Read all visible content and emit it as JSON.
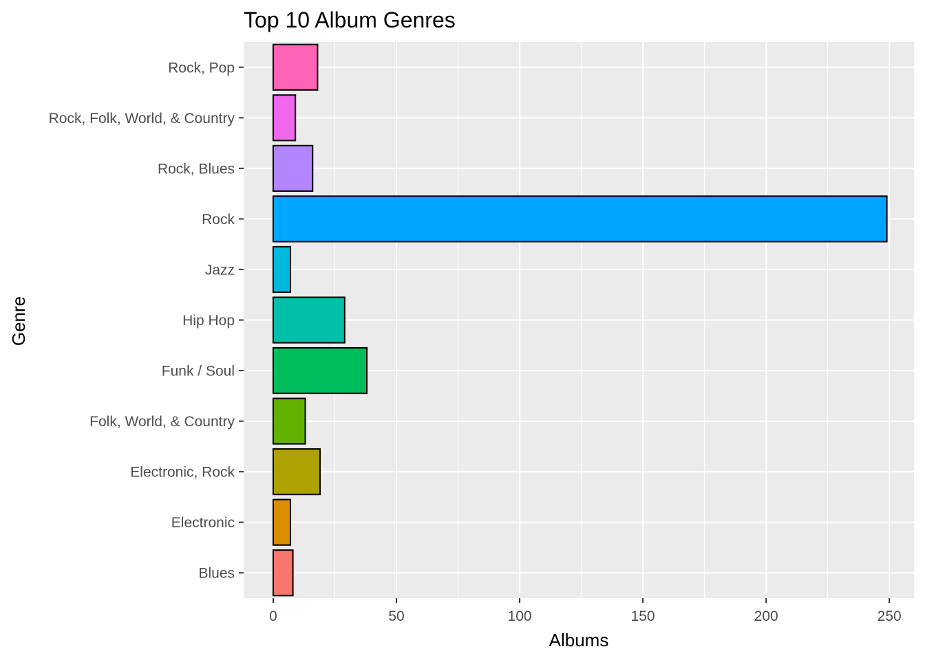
{
  "chart_data": {
    "type": "bar",
    "orientation": "horizontal",
    "title": "Top 10 Album Genres",
    "xlabel": "Albums",
    "ylabel": "Genre",
    "categories": [
      "Blues",
      "Electronic",
      "Electronic, Rock",
      "Folk, World, & Country",
      "Funk / Soul",
      "Hip Hop",
      "Jazz",
      "Rock",
      "Rock, Blues",
      "Rock, Folk, World, & Country",
      "Rock, Pop"
    ],
    "values": [
      8,
      7,
      19,
      13,
      38,
      29,
      7,
      249,
      16,
      9,
      18
    ],
    "colors": [
      "#F8766D",
      "#DB8E00",
      "#AEA200",
      "#64B200",
      "#00BD5C",
      "#00C1A7",
      "#00BADE",
      "#00A6FF",
      "#B385FF",
      "#EF67EB",
      "#FF63B6"
    ],
    "xlim": [
      -12,
      260
    ],
    "xticks": [
      0,
      50,
      100,
      150,
      200,
      250
    ],
    "grid": true,
    "legend": "none",
    "panel_background": "#EBEBEB",
    "bar_outline": "#000000"
  }
}
